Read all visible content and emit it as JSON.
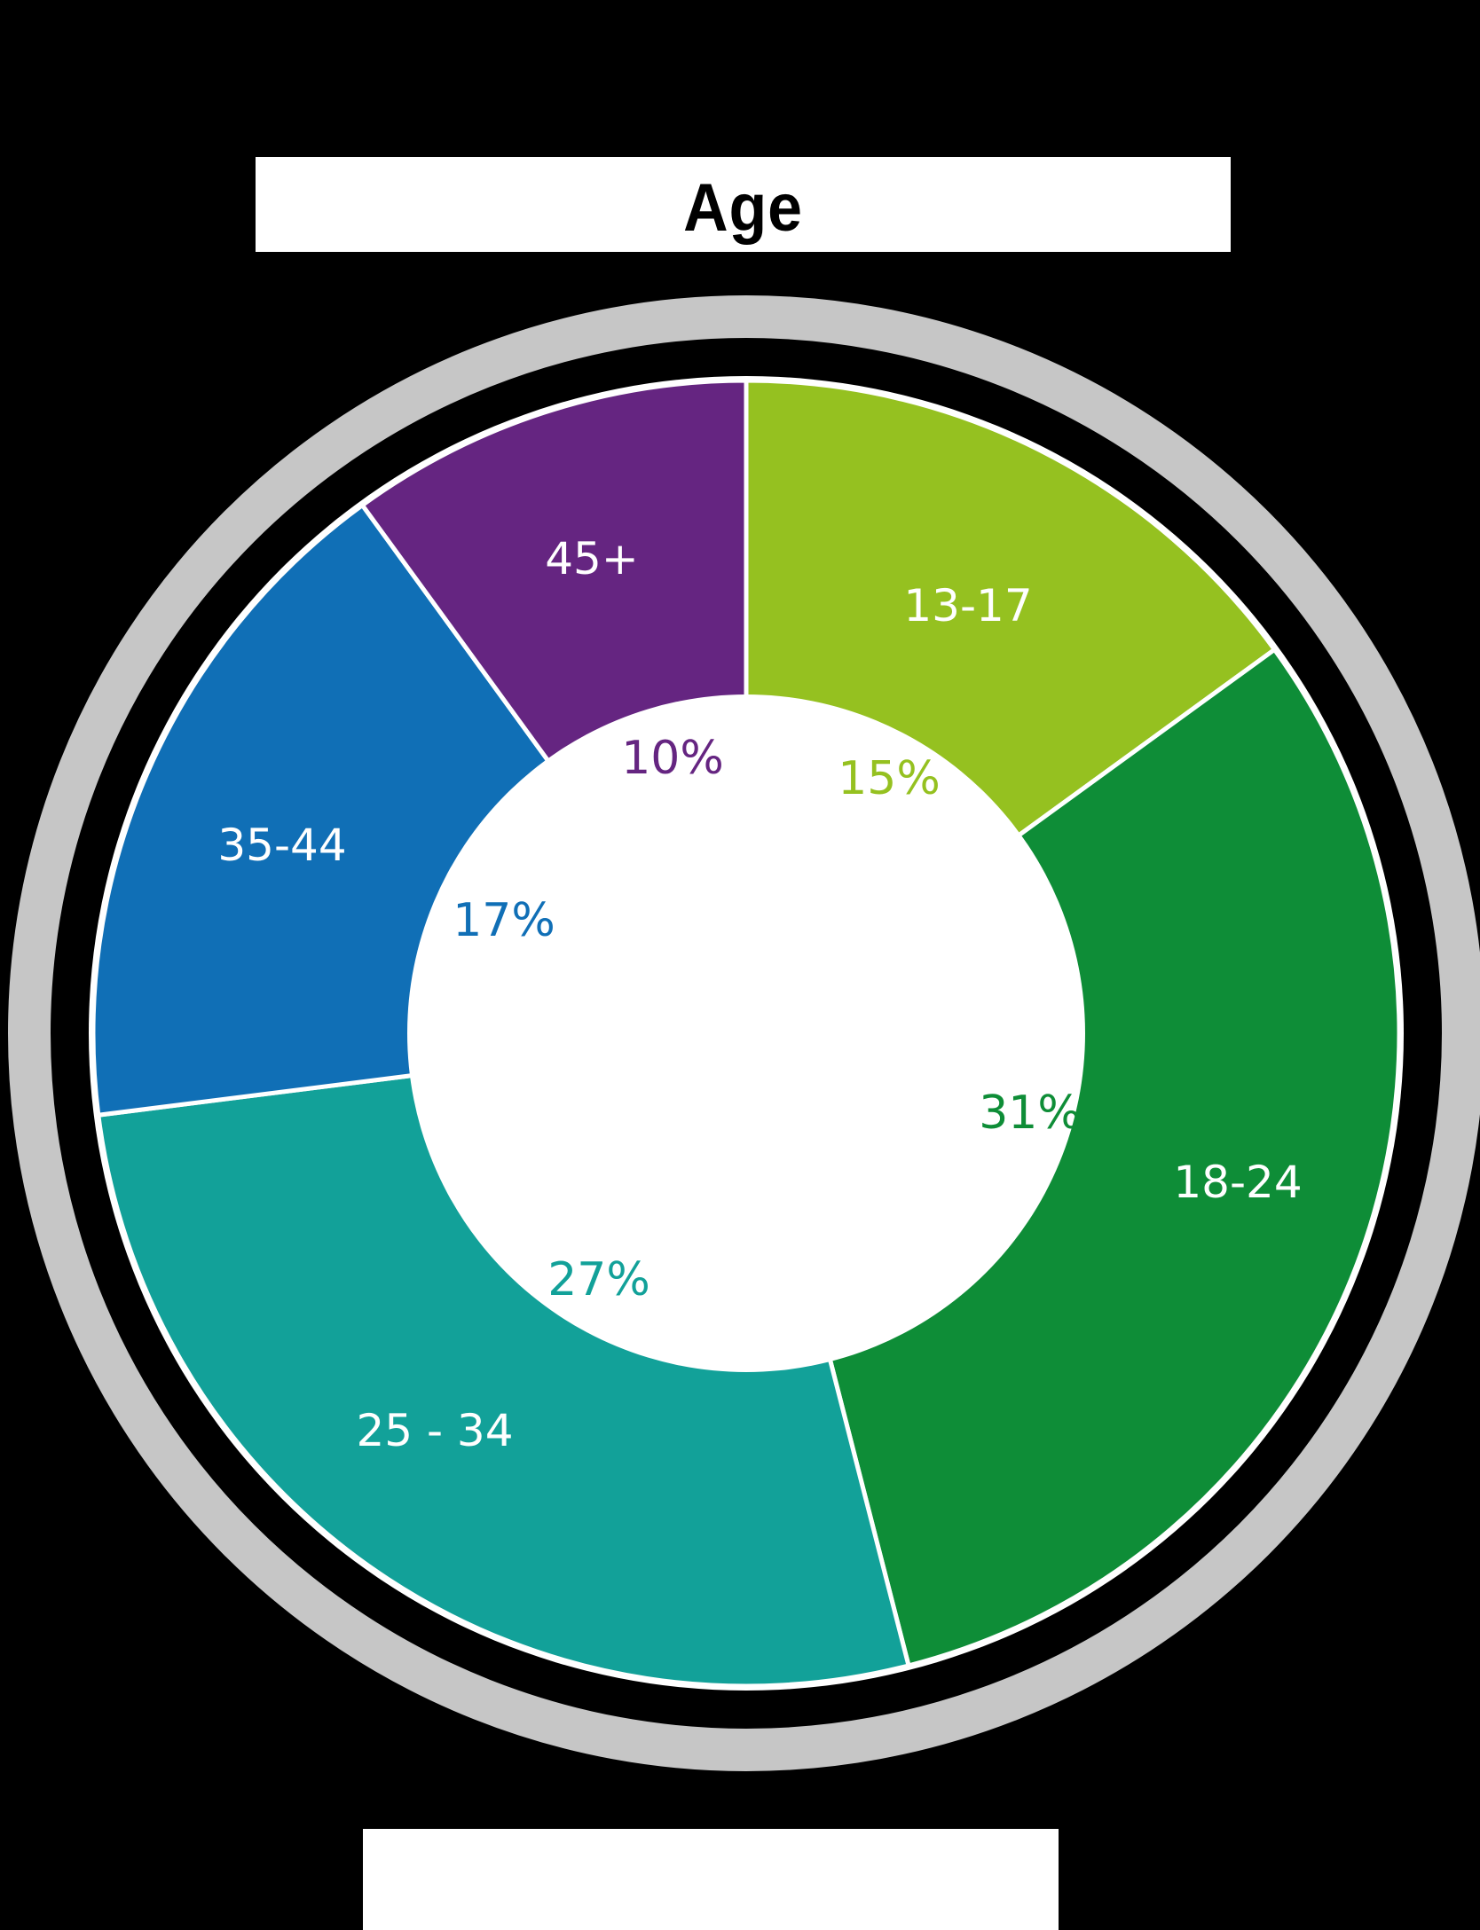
{
  "title": {
    "line_visible": "Age"
  },
  "chart_data": {
    "type": "pie",
    "subtype": "donut",
    "title": "Age",
    "start_angle_deg": 0,
    "direction": "clockwise",
    "categories": [
      "13-17",
      "18-24",
      "25 - 34",
      "35-44",
      "45+"
    ],
    "values": [
      15,
      31,
      27,
      17,
      10
    ],
    "value_labels": [
      "15%",
      "31%",
      "27%",
      "17%",
      "10%"
    ],
    "colors": [
      "#95C120",
      "#0E8D37",
      "#12A199",
      "#106FB6",
      "#652581"
    ],
    "legend": "none",
    "slices": [
      {
        "label": "13-17",
        "value": 15,
        "pct_label": "15%",
        "color": "#95C120"
      },
      {
        "label": "18-24",
        "value": 31,
        "pct_label": "31%",
        "color": "#0E8D37"
      },
      {
        "label": "25 - 34",
        "value": 27,
        "pct_label": "27%",
        "color": "#12A199"
      },
      {
        "label": "35-44",
        "value": 17,
        "pct_label": "17%",
        "color": "#106FB6"
      },
      {
        "label": "45+",
        "value": 10,
        "pct_label": "10%",
        "color": "#652581"
      }
    ]
  },
  "style": {
    "background": "#000000",
    "ring_color": "#C6C6C6",
    "separator_color": "#FFFFFF",
    "hole_color": "#FFFFFF"
  }
}
